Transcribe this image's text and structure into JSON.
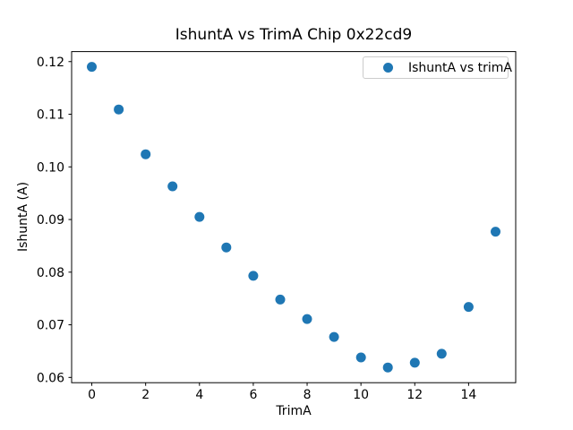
{
  "chart_data": {
    "type": "scatter",
    "title": "IshuntA vs TrimA Chip 0x22cd9",
    "xlabel": "TrimA",
    "ylabel": "IshuntA (A)",
    "legend": {
      "position": "upper right",
      "entries": [
        {
          "label": "IshuntA vs trimA",
          "marker": "circle-icon",
          "marker_color": "#1f77b4"
        }
      ]
    },
    "x": [
      0,
      1,
      2,
      3,
      4,
      5,
      6,
      7,
      8,
      9,
      10,
      11,
      12,
      13,
      14,
      15
    ],
    "y": [
      0.119,
      0.1109,
      0.1024,
      0.0963,
      0.0905,
      0.0847,
      0.0793,
      0.0748,
      0.0711,
      0.0677,
      0.0638,
      0.0619,
      0.0628,
      0.0645,
      0.0734,
      0.0877
    ],
    "xlim": [
      -0.75,
      15.75
    ],
    "ylim": [
      0.059,
      0.1219
    ],
    "xticks": [
      0,
      2,
      4,
      6,
      8,
      10,
      12,
      14
    ],
    "xtick_labels": [
      "0",
      "2",
      "4",
      "6",
      "8",
      "10",
      "12",
      "14"
    ],
    "yticks": [
      0.06,
      0.07,
      0.08,
      0.09,
      0.1,
      0.11,
      0.12
    ],
    "ytick_labels": [
      "0.06",
      "0.07",
      "0.08",
      "0.09",
      "0.10",
      "0.11",
      "0.12"
    ],
    "grid": false,
    "marker": {
      "shape": "circle",
      "color": "#1f77b4",
      "radius_px": 5.5
    },
    "colors": {
      "background": "#ffffff",
      "spine": "#000000",
      "tick": "#000000",
      "text": "#000000",
      "legend_border": "#cccccc",
      "point": "#1f77b4"
    }
  }
}
